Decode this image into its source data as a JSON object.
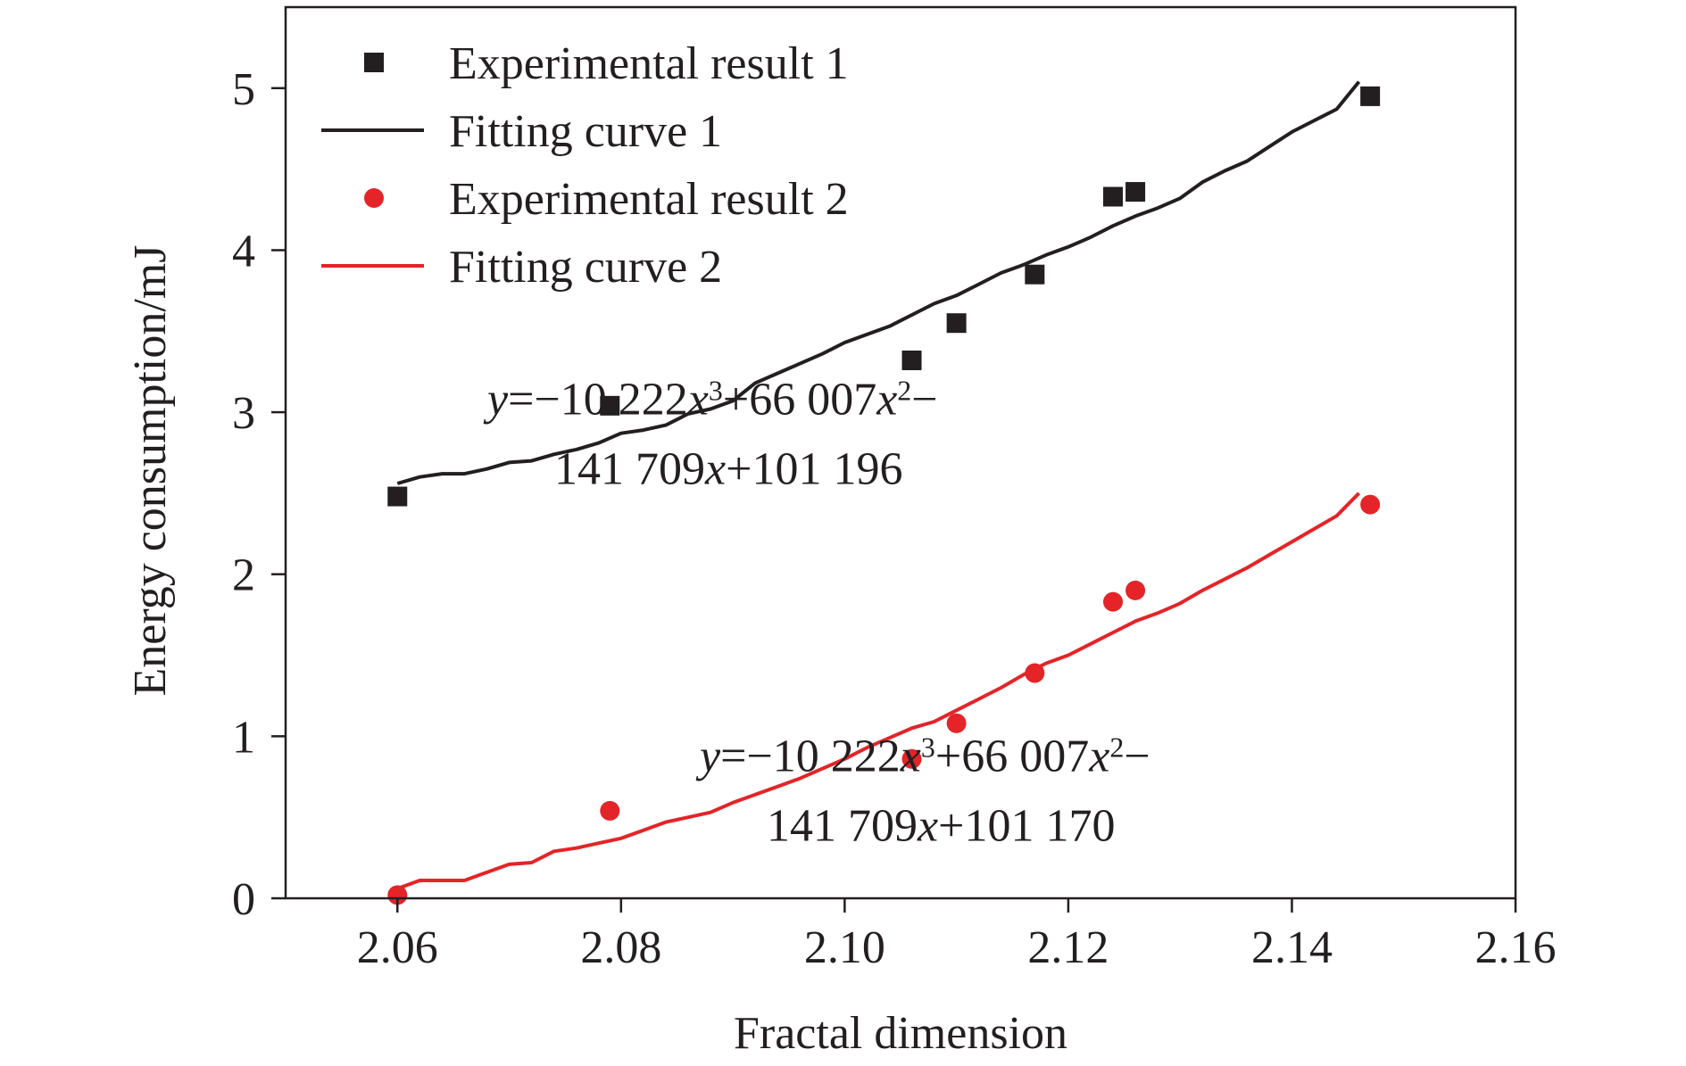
{
  "chart_data": {
    "type": "scatter",
    "title": "",
    "xlabel": "Fractal dimension",
    "ylabel": "Energy consumption/mJ",
    "xlim": [
      2.05,
      2.16
    ],
    "ylim": [
      0,
      5.5
    ],
    "xticks": [
      2.06,
      2.08,
      2.1,
      2.12,
      2.14,
      2.16
    ],
    "xtick_labels": [
      "2.06",
      "2.08",
      "2.10",
      "2.12",
      "2.14",
      "2.16"
    ],
    "yticks": [
      0,
      1,
      2,
      3,
      4,
      5
    ],
    "ytick_labels": [
      "0",
      "1",
      "2",
      "3",
      "4",
      "5"
    ],
    "grid": false,
    "legend_position": "top-left",
    "series": [
      {
        "name": "Experimental result 1",
        "kind": "scatter",
        "marker": "square",
        "color": "#231f20",
        "x": [
          2.06,
          2.079,
          2.106,
          2.11,
          2.117,
          2.124,
          2.126,
          2.147
        ],
        "y": [
          2.48,
          3.04,
          3.32,
          3.55,
          3.85,
          4.33,
          4.36,
          4.95
        ]
      },
      {
        "name": "Fitting curve 1",
        "kind": "line",
        "color": "#231f20",
        "x": [
          2.06,
          2.062,
          2.064,
          2.066,
          2.068,
          2.07,
          2.072,
          2.074,
          2.076,
          2.078,
          2.08,
          2.082,
          2.084,
          2.086,
          2.088,
          2.09,
          2.092,
          2.094,
          2.096,
          2.098,
          2.1,
          2.102,
          2.104,
          2.106,
          2.108,
          2.11,
          2.112,
          2.114,
          2.116,
          2.118,
          2.12,
          2.122,
          2.124,
          2.126,
          2.128,
          2.13,
          2.132,
          2.134,
          2.136,
          2.138,
          2.14,
          2.142,
          2.144,
          2.146
        ],
        "y": [
          2.56,
          2.6,
          2.62,
          2.62,
          2.65,
          2.69,
          2.7,
          2.74,
          2.77,
          2.81,
          2.87,
          2.89,
          2.92,
          2.99,
          3.02,
          3.07,
          3.18,
          3.24,
          3.3,
          3.36,
          3.43,
          3.48,
          3.53,
          3.6,
          3.67,
          3.72,
          3.79,
          3.86,
          3.91,
          3.97,
          4.02,
          4.08,
          4.15,
          4.21,
          4.26,
          4.32,
          4.42,
          4.49,
          4.55,
          4.64,
          4.73,
          4.8,
          4.87,
          5.04
        ]
      },
      {
        "name": "Experimental result 2",
        "kind": "scatter",
        "marker": "circle",
        "color": "#e42428",
        "x": [
          2.06,
          2.079,
          2.106,
          2.11,
          2.117,
          2.124,
          2.126,
          2.147
        ],
        "y": [
          0.02,
          0.54,
          0.86,
          1.08,
          1.39,
          1.83,
          1.9,
          2.43
        ]
      },
      {
        "name": "Fitting curve 2",
        "kind": "line",
        "color": "#e42428",
        "x": [
          2.06,
          2.062,
          2.064,
          2.066,
          2.068,
          2.07,
          2.072,
          2.074,
          2.076,
          2.078,
          2.08,
          2.082,
          2.084,
          2.086,
          2.088,
          2.09,
          2.092,
          2.094,
          2.096,
          2.098,
          2.1,
          2.102,
          2.104,
          2.106,
          2.108,
          2.11,
          2.112,
          2.114,
          2.116,
          2.118,
          2.12,
          2.122,
          2.124,
          2.126,
          2.128,
          2.13,
          2.132,
          2.134,
          2.136,
          2.138,
          2.14,
          2.142,
          2.144,
          2.146
        ],
        "y": [
          0.06,
          0.11,
          0.11,
          0.11,
          0.16,
          0.21,
          0.22,
          0.29,
          0.31,
          0.34,
          0.37,
          0.42,
          0.47,
          0.5,
          0.53,
          0.59,
          0.64,
          0.69,
          0.74,
          0.8,
          0.86,
          0.93,
          0.99,
          1.05,
          1.09,
          1.16,
          1.23,
          1.3,
          1.38,
          1.45,
          1.5,
          1.57,
          1.64,
          1.71,
          1.76,
          1.82,
          1.9,
          1.97,
          2.04,
          2.12,
          2.2,
          2.28,
          2.36,
          2.5
        ]
      }
    ],
    "annotations": [
      {
        "text_line1_parts": [
          "y",
          "=−10 222",
          "x",
          "3",
          "+66 007",
          "x",
          "2",
          "−"
        ],
        "text_line2_parts": [
          "141 709",
          "x",
          "+101 196"
        ],
        "anchor": [
          2.088,
          2.98
        ]
      },
      {
        "text_line1_parts": [
          "y",
          "=−10 222",
          "x",
          "3",
          "+66 007",
          "x",
          "2",
          "−"
        ],
        "text_line2_parts": [
          "141 709",
          "x",
          "+101 170"
        ],
        "anchor": [
          2.107,
          0.78
        ]
      }
    ]
  }
}
